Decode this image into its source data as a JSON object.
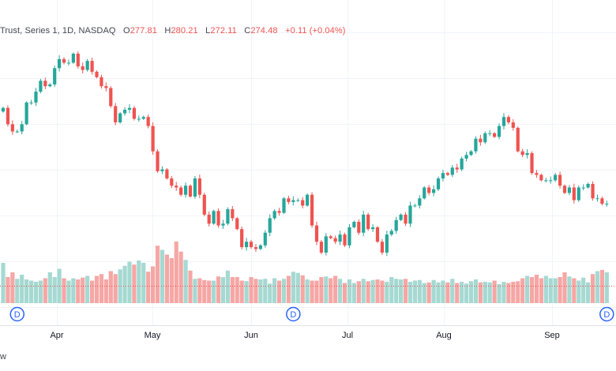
{
  "legend": {
    "symbol": "Trust, Series 1, 1D, NASDAQ",
    "o_label": "O",
    "o_value": "277.81",
    "h_label": "H",
    "h_value": "280.21",
    "l_label": "L",
    "l_value": "272.11",
    "c_label": "C",
    "c_value": "274.48",
    "change": "+0.11 (+0.04%)"
  },
  "bottom_text": "w",
  "colors": {
    "up": "#26a69a",
    "down": "#ef5350",
    "grid": "#f0f3fa",
    "vol_up": "#a5d9d2",
    "vol_down": "#f5a7a5",
    "dividend": "#2962ff"
  },
  "chart_data": {
    "type": "candlestick",
    "xlabels": [
      "Apr",
      "May",
      "Jun",
      "Jul",
      "Aug",
      "Sep"
    ],
    "dividend_marker": "D",
    "dividends_after_candle": [
      3,
      62,
      129
    ],
    "price_path": [
      330,
      321,
      317,
      317,
      321,
      333,
      333,
      339,
      345,
      342,
      343,
      352,
      357,
      355,
      355,
      360,
      353,
      351,
      356,
      350,
      347,
      342,
      341,
      331,
      322,
      327,
      329,
      330,
      324,
      324,
      325,
      320,
      306,
      295,
      296,
      291,
      287,
      286,
      282,
      287,
      281,
      291,
      282,
      271,
      266,
      273,
      265,
      266,
      274,
      269,
      263,
      253,
      256,
      253,
      252,
      254,
      261,
      269,
      273,
      272,
      280,
      278,
      279,
      279,
      276,
      282,
      265,
      256,
      250,
      259,
      258,
      256,
      260,
      254,
      264,
      267,
      261,
      271,
      263,
      264,
      256,
      250,
      260,
      262,
      268,
      271,
      266,
      276,
      276,
      280,
      286,
      283,
      285,
      291,
      294,
      293,
      297,
      296,
      302,
      304,
      306,
      313,
      311,
      316,
      316,
      314,
      320,
      325,
      322,
      319,
      306,
      304,
      305,
      294,
      293,
      290,
      290,
      290,
      293,
      287,
      283,
      286,
      279,
      286,
      286,
      288,
      280,
      280,
      277,
      277
    ],
    "volume": [
      68,
      44,
      52,
      41,
      48,
      40,
      38,
      36,
      38,
      42,
      52,
      44,
      58,
      42,
      38,
      42,
      40,
      43,
      46,
      38,
      46,
      49,
      40,
      54,
      49,
      57,
      63,
      70,
      65,
      72,
      68,
      53,
      62,
      97,
      90,
      82,
      76,
      104,
      87,
      73,
      55,
      41,
      42,
      39,
      38,
      38,
      45,
      44,
      55,
      44,
      44,
      38,
      37,
      44,
      41,
      40,
      41,
      33,
      42,
      38,
      41,
      46,
      53,
      51,
      47,
      40,
      38,
      38,
      44,
      45,
      42,
      46,
      41,
      34,
      40,
      34,
      37,
      41,
      37,
      39,
      40,
      38,
      36,
      44,
      41,
      40,
      41,
      36,
      38,
      39,
      34,
      35,
      39,
      35,
      38,
      35,
      41,
      34,
      36,
      33,
      37,
      40,
      35,
      36,
      35,
      38,
      32,
      36,
      34,
      36,
      37,
      42,
      46,
      44,
      48,
      42,
      46,
      42,
      42,
      44,
      52,
      45,
      42,
      38,
      43,
      35,
      49,
      54,
      56,
      52
    ]
  }
}
